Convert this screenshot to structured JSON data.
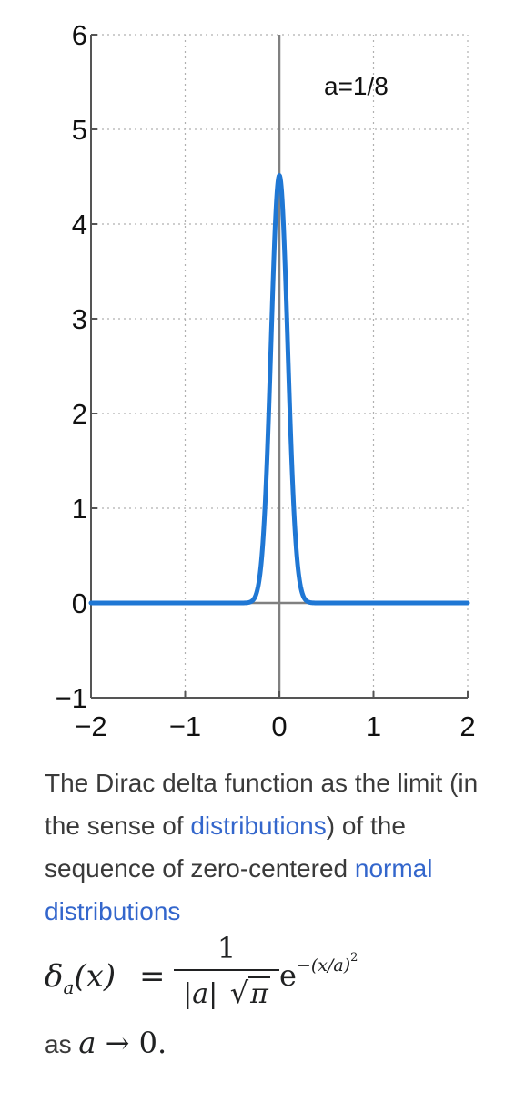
{
  "chart_data": {
    "type": "line",
    "title": "",
    "xlabel": "",
    "ylabel": "",
    "xlim": [
      -2,
      2
    ],
    "ylim": [
      -1,
      6
    ],
    "x_ticks": [
      -2,
      -1,
      0,
      1,
      2
    ],
    "y_ticks": [
      -1,
      0,
      1,
      2,
      3,
      4,
      5,
      6
    ],
    "x_tick_labels": [
      "−2",
      "−1",
      "0",
      "1",
      "2"
    ],
    "y_tick_labels": [
      "−1",
      "0",
      "1",
      "2",
      "3",
      "4",
      "5",
      "6"
    ],
    "grid": true,
    "annotation": "a=1/8",
    "series": [
      {
        "function": "gaussian",
        "a": 0.125,
        "peak": 4.51,
        "color": "#1f77d4",
        "x": [
          -2.0,
          -0.5,
          -0.375,
          -0.3,
          -0.25,
          -0.2,
          -0.15,
          -0.1,
          -0.05,
          0.0,
          0.05,
          0.1,
          0.15,
          0.2,
          0.25,
          0.3,
          0.375,
          0.5,
          2.0
        ],
        "y": [
          0.0,
          0.0,
          0.0006,
          0.014,
          0.082,
          0.35,
          1.07,
          2.37,
          3.85,
          4.51,
          3.85,
          2.37,
          1.07,
          0.35,
          0.082,
          0.014,
          0.0006,
          0.0,
          0.0
        ]
      }
    ]
  },
  "caption": {
    "text_1": "The Dirac delta function as the limit (in the sense of ",
    "link_1": "distributions",
    "text_2": ") of the sequence of zero-centered ",
    "link_2": "normal distributions"
  },
  "formula": {
    "lhs_symbol": "δ",
    "lhs_sub": "a",
    "lhs_arg": "(x)",
    "equals": "=",
    "numerator": "1",
    "den_abs": "|a|",
    "den_sqrt_arg": "π",
    "exp_base": "e",
    "exp_power": "−(x/a)",
    "exp_power_sup": "2"
  },
  "tail": {
    "text": "as ",
    "math_var": "a",
    "math_rest": " → 0",
    "period": "."
  }
}
